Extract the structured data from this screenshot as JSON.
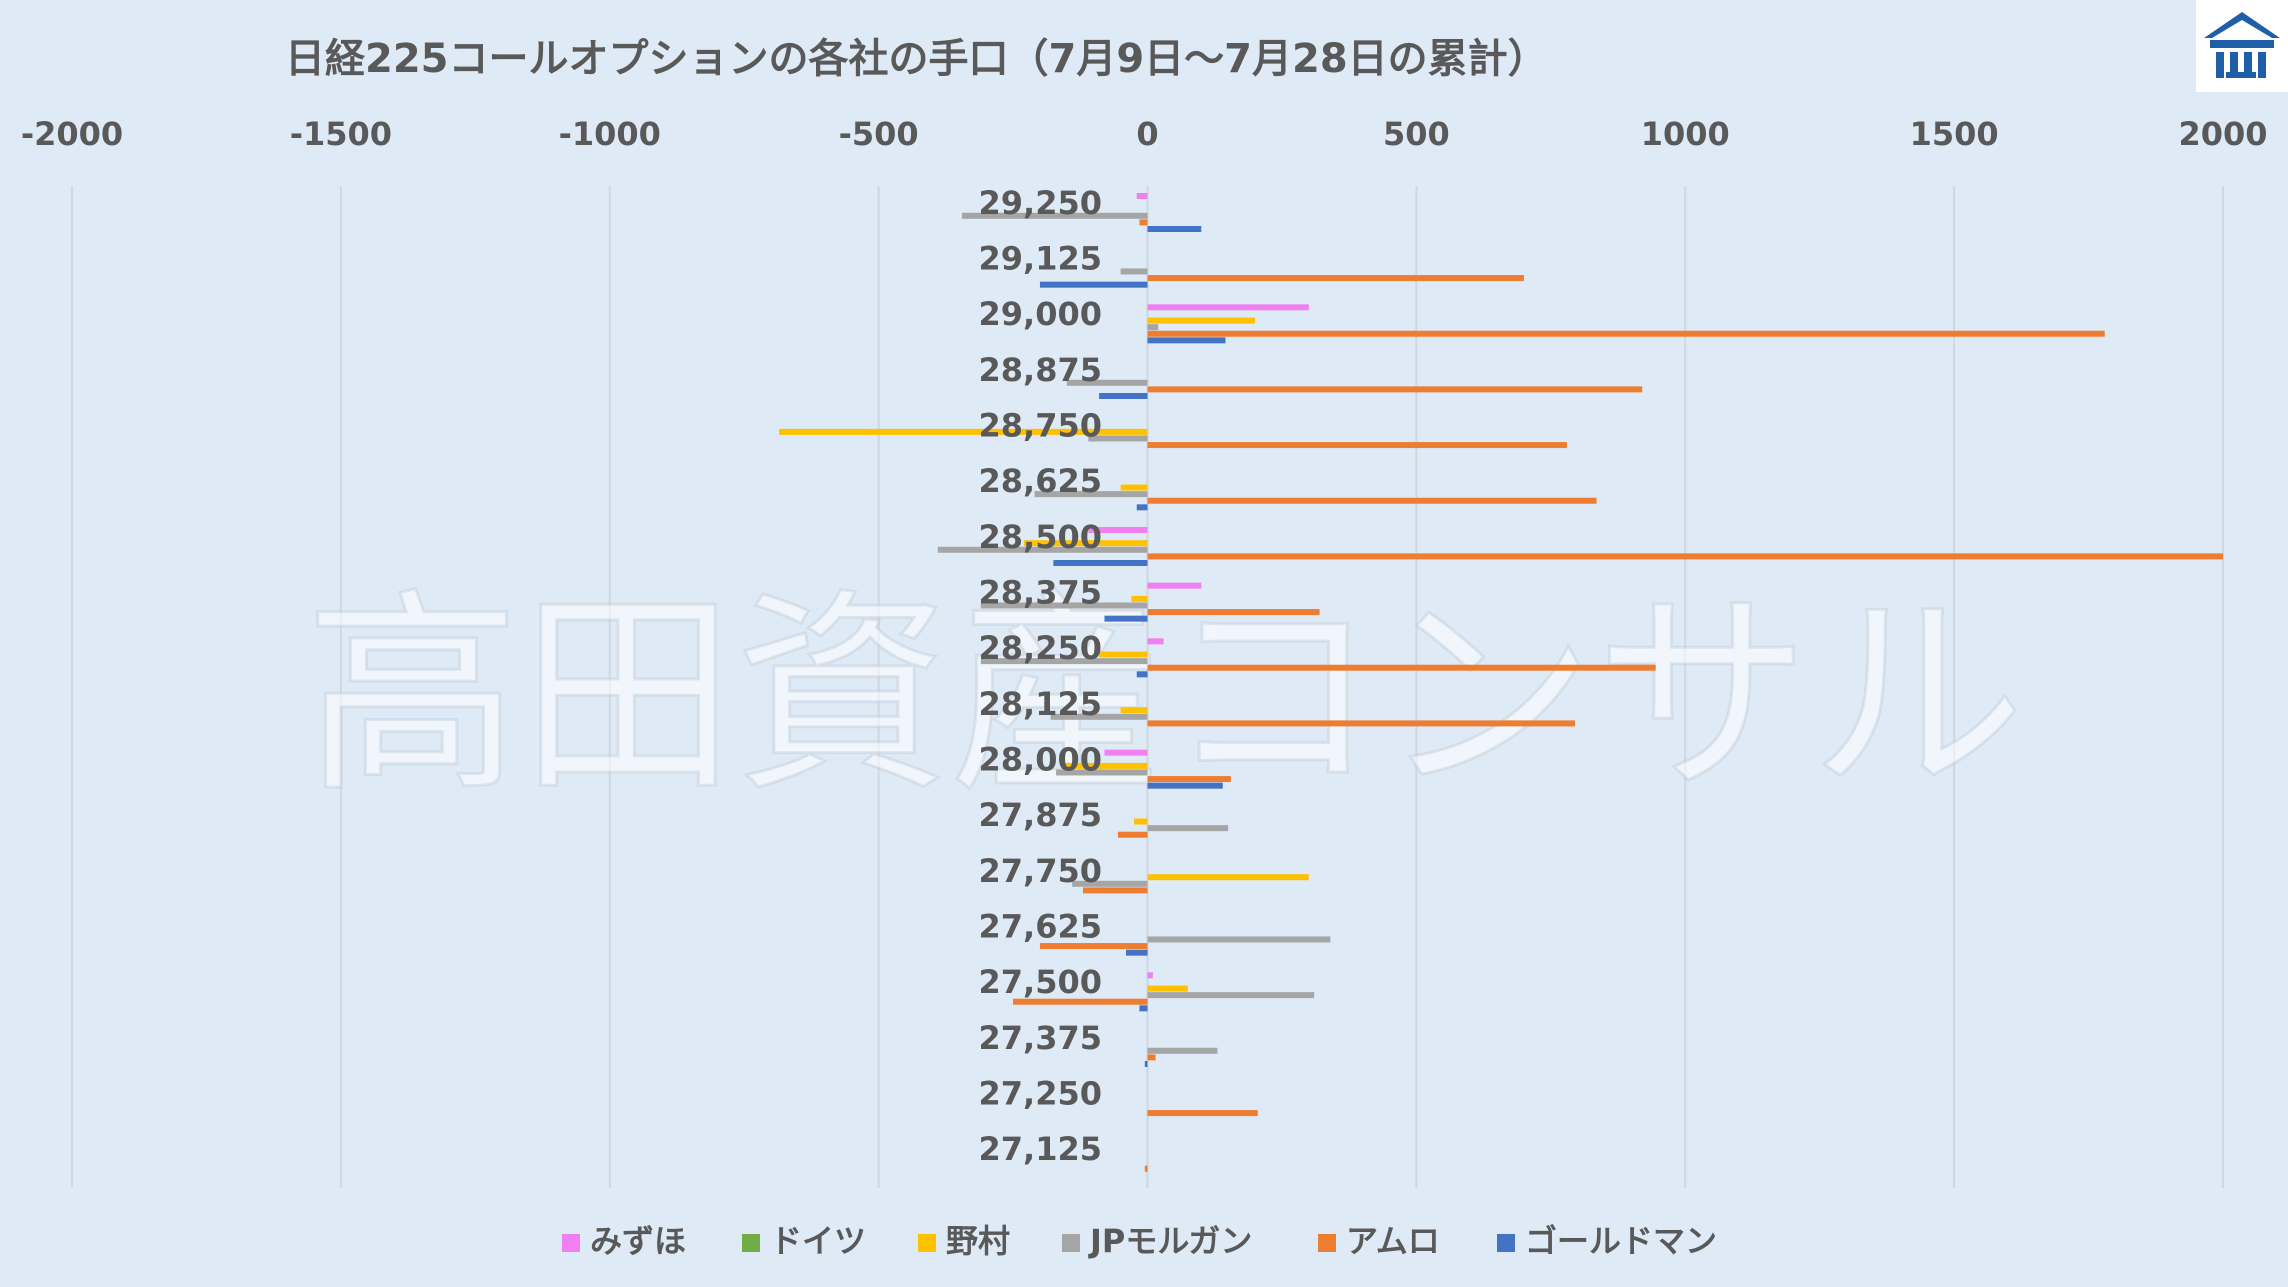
{
  "chart_data": {
    "type": "bar",
    "orientation": "horizontal",
    "title": "日経225コールオプションの各社の手口（7月9日～7月28日の累計）",
    "watermark": "高田資産コンサル",
    "xlim": [
      -2000,
      2000
    ],
    "x_ticks": [
      "-2000",
      "-1500",
      "-1000",
      "-500",
      "0",
      "500",
      "1000",
      "1500",
      "2000"
    ],
    "x_tick_values": [
      -2000,
      -1500,
      -1000,
      -500,
      0,
      500,
      1000,
      1500,
      2000
    ],
    "axis_position": "top",
    "grid": true,
    "legend_position": "bottom",
    "categories": [
      "29,250",
      "29,125",
      "29,000",
      "28,875",
      "28,750",
      "28,625",
      "28,500",
      "28,375",
      "28,250",
      "28,125",
      "28,000",
      "27,875",
      "27,750",
      "27,625",
      "27,500",
      "27,375",
      "27,250",
      "27,125"
    ],
    "series": [
      {
        "name": "みずほ",
        "color": "#f07ff0",
        "values": [
          -20,
          0,
          300,
          0,
          0,
          0,
          -110,
          100,
          30,
          0,
          -80,
          0,
          0,
          0,
          10,
          0,
          0,
          0
        ]
      },
      {
        "name": "ドイツ",
        "color": "#70ad47",
        "values": [
          0,
          0,
          0,
          0,
          0,
          0,
          0,
          0,
          0,
          0,
          0,
          0,
          0,
          0,
          0,
          0,
          0,
          0
        ]
      },
      {
        "name": "野村",
        "color": "#ffc000",
        "values": [
          0,
          0,
          200,
          0,
          -685,
          -50,
          -230,
          -30,
          -90,
          -50,
          -160,
          -25,
          300,
          0,
          75,
          0,
          0,
          0
        ]
      },
      {
        "name": "JPモルガン",
        "color": "#a5a5a5",
        "values": [
          -345,
          -50,
          20,
          -150,
          -110,
          -210,
          -390,
          -310,
          -310,
          -180,
          -170,
          150,
          -140,
          340,
          310,
          130,
          0,
          0
        ]
      },
      {
        "name": "アムロ",
        "color": "#ed7d31",
        "values": [
          -15,
          700,
          1780,
          920,
          780,
          835,
          2000,
          320,
          945,
          795,
          155,
          -55,
          -120,
          -200,
          -250,
          15,
          205,
          -5
        ]
      },
      {
        "name": "ゴールドマン",
        "color": "#4472c4",
        "values": [
          100,
          -200,
          145,
          -90,
          0,
          -20,
          -175,
          -80,
          -20,
          0,
          140,
          0,
          0,
          -40,
          -15,
          -5,
          0,
          0
        ]
      }
    ]
  },
  "logo": {
    "icon": "takata-shisan-logo-icon",
    "color": "#1f5fa8"
  }
}
